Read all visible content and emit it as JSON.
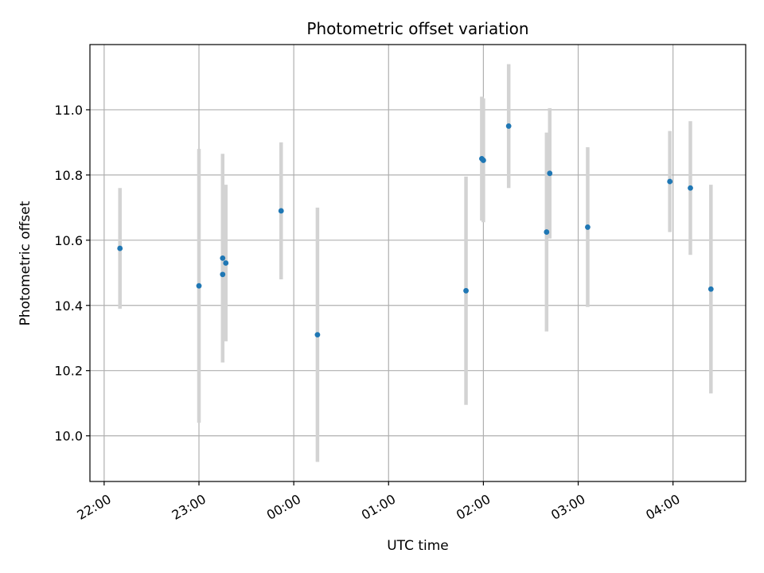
{
  "chart_data": {
    "type": "scatter",
    "title": "Photometric offset variation",
    "xlabel": "UTC time",
    "ylabel": "Photometric offset",
    "xlim": [
      "21:51",
      "04:46"
    ],
    "ylim": [
      9.86,
      11.2
    ],
    "grid": true,
    "x_ticks": [
      "22:00",
      "23:00",
      "00:00",
      "01:00",
      "02:00",
      "03:00",
      "04:00"
    ],
    "y_ticks": [
      "10.0",
      "10.2",
      "10.4",
      "10.6",
      "10.8",
      "11.0"
    ],
    "colors": {
      "point": "#1f77b4",
      "errorbar": "#d3d3d3",
      "grid": "#b0b0b0"
    },
    "points": [
      {
        "time": "22:10",
        "y": 10.575,
        "err": 0.185
      },
      {
        "time": "23:00",
        "y": 10.46,
        "err": 0.42
      },
      {
        "time": "23:15",
        "y": 10.545,
        "err": 0.32
      },
      {
        "time": "23:15",
        "y": 10.495,
        "err": 0.27
      },
      {
        "time": "23:17",
        "y": 10.53,
        "err": 0.24
      },
      {
        "time": "23:52",
        "y": 10.69,
        "err": 0.21
      },
      {
        "time": "00:15",
        "y": 10.31,
        "err": 0.39
      },
      {
        "time": "01:49",
        "y": 10.445,
        "err": 0.35
      },
      {
        "time": "01:59",
        "y": 10.85,
        "err": 0.19
      },
      {
        "time": "02:00",
        "y": 10.845,
        "err": 0.19
      },
      {
        "time": "02:16",
        "y": 10.95,
        "err": 0.19
      },
      {
        "time": "02:40",
        "y": 10.625,
        "err": 0.305
      },
      {
        "time": "02:42",
        "y": 10.805,
        "err": 0.2
      },
      {
        "time": "03:06",
        "y": 10.64,
        "err": 0.245
      },
      {
        "time": "03:58",
        "y": 10.78,
        "err": 0.155
      },
      {
        "time": "04:11",
        "y": 10.76,
        "err": 0.205
      },
      {
        "time": "04:24",
        "y": 10.45,
        "err": 0.32
      }
    ]
  }
}
